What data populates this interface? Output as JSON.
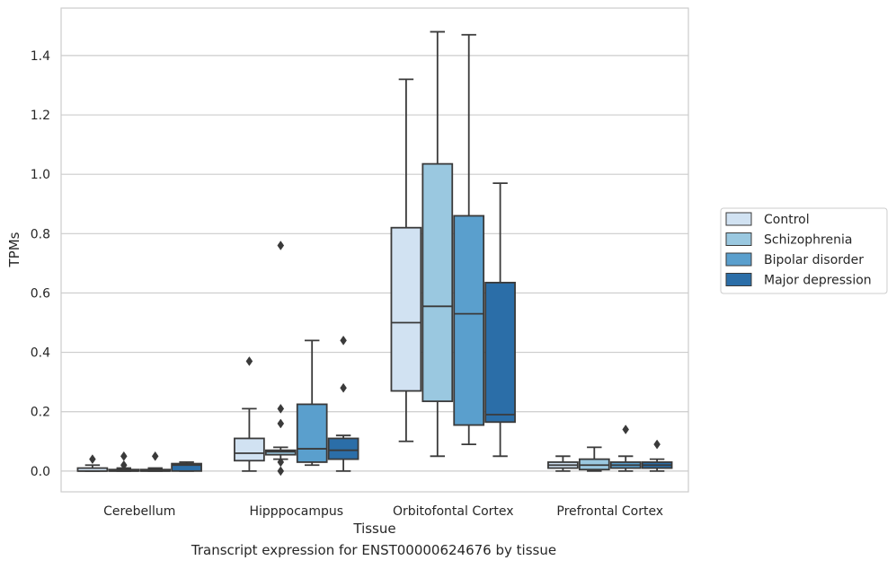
{
  "caption": "Transcript expression for ENST00000624676 by tissue",
  "chart_data": {
    "type": "box",
    "xlabel": "Tissue",
    "ylabel": "TPMs",
    "ylim": [
      -0.07,
      1.56
    ],
    "yticks": [
      0.0,
      0.2,
      0.4,
      0.6,
      0.8,
      1.0,
      1.2,
      1.4
    ],
    "ytick_labels": [
      "0.0",
      "0.2",
      "0.4",
      "0.6",
      "0.8",
      "1.0",
      "1.2",
      "1.4"
    ],
    "grid": "horizontal",
    "legend_placement": "center-right, outside plot",
    "categories": [
      "Cerebellum",
      "Hipppocampus",
      "Orbitofontal Cortex",
      "Prefrontal Cortex"
    ],
    "series": [
      {
        "name": "Control",
        "color": "#d1e2f2",
        "boxes": [
          {
            "q1": 0.0,
            "median": 0.0,
            "q3": 0.01,
            "whisker_low": 0.0,
            "whisker_high": 0.02,
            "outliers": [
              0.04
            ]
          },
          {
            "q1": 0.035,
            "median": 0.06,
            "q3": 0.11,
            "whisker_low": 0.0,
            "whisker_high": 0.21,
            "outliers": [
              0.37
            ]
          },
          {
            "q1": 0.27,
            "median": 0.5,
            "q3": 0.82,
            "whisker_low": 0.1,
            "whisker_high": 1.32,
            "outliers": []
          },
          {
            "q1": 0.01,
            "median": 0.02,
            "q3": 0.03,
            "whisker_low": 0.0,
            "whisker_high": 0.05,
            "outliers": []
          }
        ]
      },
      {
        "name": "Schizophrenia",
        "color": "#9ac8e0",
        "boxes": [
          {
            "q1": 0.0,
            "median": 0.0,
            "q3": 0.005,
            "whisker_low": 0.0,
            "whisker_high": 0.01,
            "outliers": [
              0.02,
              0.05
            ]
          },
          {
            "q1": 0.055,
            "median": 0.065,
            "q3": 0.07,
            "whisker_low": 0.04,
            "whisker_high": 0.08,
            "outliers": [
              0.76,
              0.21,
              0.16,
              0.03,
              0.0
            ]
          },
          {
            "q1": 0.235,
            "median": 0.555,
            "q3": 1.035,
            "whisker_low": 0.05,
            "whisker_high": 1.48,
            "outliers": []
          },
          {
            "q1": 0.005,
            "median": 0.02,
            "q3": 0.04,
            "whisker_low": 0.0,
            "whisker_high": 0.08,
            "outliers": []
          }
        ]
      },
      {
        "name": "Bipolar disorder",
        "color": "#5a9fcd",
        "boxes": [
          {
            "q1": 0.0,
            "median": 0.0,
            "q3": 0.005,
            "whisker_low": 0.0,
            "whisker_high": 0.01,
            "outliers": [
              0.05
            ]
          },
          {
            "q1": 0.03,
            "median": 0.075,
            "q3": 0.225,
            "whisker_low": 0.02,
            "whisker_high": 0.44,
            "outliers": []
          },
          {
            "q1": 0.155,
            "median": 0.53,
            "q3": 0.86,
            "whisker_low": 0.09,
            "whisker_high": 1.47,
            "outliers": []
          },
          {
            "q1": 0.01,
            "median": 0.02,
            "q3": 0.03,
            "whisker_low": 0.0,
            "whisker_high": 0.05,
            "outliers": [
              0.14
            ]
          }
        ]
      },
      {
        "name": "Major depression",
        "color": "#2b6ea8",
        "boxes": [
          {
            "q1": 0.0,
            "median": 0.02,
            "q3": 0.025,
            "whisker_low": 0.0,
            "whisker_high": 0.03,
            "outliers": []
          },
          {
            "q1": 0.04,
            "median": 0.07,
            "q3": 0.11,
            "whisker_low": 0.0,
            "whisker_high": 0.12,
            "outliers": [
              0.44,
              0.28
            ]
          },
          {
            "q1": 0.165,
            "median": 0.19,
            "q3": 0.635,
            "whisker_low": 0.05,
            "whisker_high": 0.97,
            "outliers": []
          },
          {
            "q1": 0.01,
            "median": 0.02,
            "q3": 0.03,
            "whisker_low": 0.0,
            "whisker_high": 0.04,
            "outliers": [
              0.09
            ]
          }
        ]
      }
    ]
  }
}
